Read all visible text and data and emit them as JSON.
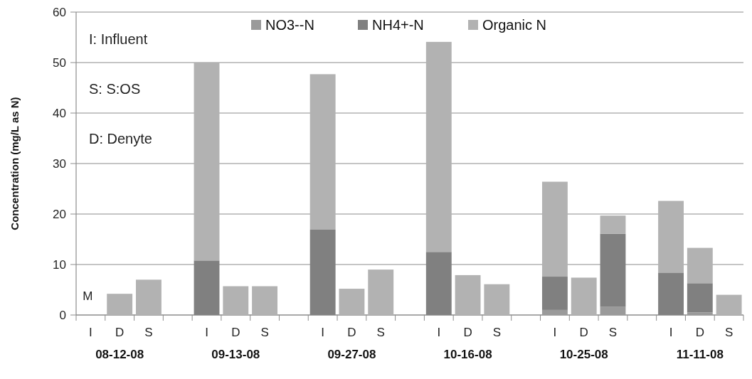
{
  "chart_data": {
    "type": "bar",
    "stacked": true,
    "ylabel": "Concentration (mg/L as N)",
    "categories": [
      "I",
      "D",
      "S",
      null,
      "I",
      "D",
      "S",
      null,
      "I",
      "D",
      "S",
      null,
      "I",
      "D",
      "S",
      null,
      "I",
      "D",
      "S",
      null,
      "I",
      "D",
      "S"
    ],
    "series": [
      {
        "name": "NO3--N",
        "color": "#9a9a9a",
        "values": [
          null,
          null,
          null,
          null,
          null,
          null,
          null,
          null,
          null,
          null,
          null,
          null,
          null,
          null,
          null,
          null,
          1.0,
          null,
          1.6,
          null,
          null,
          0.5,
          null
        ]
      },
      {
        "name": "NH4+-N",
        "color": "#808080",
        "values": [
          null,
          null,
          null,
          null,
          10.8,
          null,
          null,
          null,
          16.9,
          null,
          null,
          null,
          12.5,
          null,
          null,
          null,
          6.6,
          null,
          14.5,
          null,
          8.4,
          5.8,
          null
        ]
      },
      {
        "name": "Organic N",
        "color": "#b2b2b2",
        "values": [
          null,
          4.2,
          7.0,
          null,
          39.2,
          5.7,
          5.7,
          null,
          30.8,
          5.2,
          9.0,
          null,
          41.6,
          7.9,
          6.1,
          null,
          18.8,
          7.4,
          3.6,
          null,
          14.2,
          7.0,
          4.0
        ]
      }
    ],
    "ylim": [
      0,
      60
    ],
    "yticks": [
      0,
      10,
      20,
      30,
      40,
      50,
      60
    ],
    "grid": "y",
    "legend": "top",
    "annotations": [
      "I: Influent",
      "S: S:OS",
      "D: Denyte",
      "M",
      "08-12-08",
      "09-13-08",
      "09-27-08",
      "10-16-08",
      "10-25-08",
      "11-11-08"
    ]
  }
}
